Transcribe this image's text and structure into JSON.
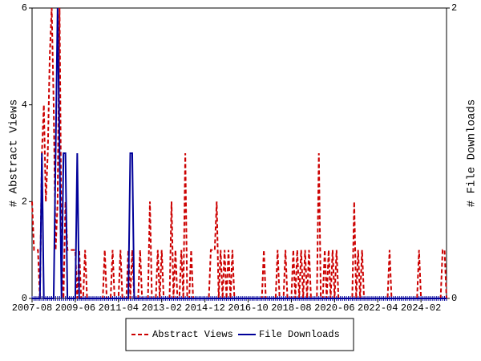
{
  "chart_data": {
    "type": "line",
    "x": [
      "2007-08",
      "2007-09",
      "2007-10",
      "2007-11",
      "2007-12",
      "2008-01",
      "2008-02",
      "2008-03",
      "2008-04",
      "2008-05",
      "2008-06",
      "2008-07",
      "2008-08",
      "2008-09",
      "2008-10",
      "2008-11",
      "2008-12",
      "2009-01",
      "2009-02",
      "2009-03",
      "2009-04",
      "2009-05",
      "2009-06",
      "2009-07",
      "2009-08",
      "2009-09",
      "2009-10",
      "2009-11",
      "2009-12",
      "2010-01",
      "2010-02",
      "2010-03",
      "2010-04",
      "2010-05",
      "2010-06",
      "2010-07",
      "2010-08",
      "2010-09",
      "2010-10",
      "2010-11",
      "2010-12",
      "2011-01",
      "2011-02",
      "2011-03",
      "2011-04",
      "2011-05",
      "2011-06",
      "2011-07",
      "2011-08",
      "2011-09",
      "2011-10",
      "2011-11",
      "2011-12",
      "2012-01",
      "2012-02",
      "2012-03",
      "2012-04",
      "2012-05",
      "2012-06",
      "2012-07",
      "2012-08",
      "2012-09",
      "2012-10",
      "2012-11",
      "2012-12",
      "2013-01",
      "2013-02",
      "2013-03",
      "2013-04",
      "2013-05",
      "2013-06",
      "2013-07",
      "2013-08",
      "2013-09",
      "2013-10",
      "2013-11",
      "2013-12",
      "2014-01",
      "2014-02",
      "2014-03",
      "2014-04",
      "2014-05",
      "2014-06",
      "2014-07",
      "2014-08",
      "2014-09",
      "2014-10",
      "2014-11",
      "2014-12",
      "2015-01",
      "2015-02",
      "2015-03",
      "2015-04",
      "2015-05",
      "2015-06",
      "2015-07",
      "2015-08",
      "2015-09",
      "2015-10",
      "2015-11",
      "2015-12",
      "2016-01",
      "2016-02",
      "2016-03",
      "2016-04",
      "2016-05",
      "2016-06",
      "2016-07",
      "2016-08",
      "2016-09",
      "2016-10",
      "2016-11",
      "2016-12",
      "2017-01",
      "2017-02",
      "2017-03",
      "2017-04",
      "2017-05",
      "2017-06",
      "2017-07",
      "2017-08",
      "2017-09",
      "2017-10",
      "2017-11",
      "2017-12",
      "2018-01",
      "2018-02",
      "2018-03",
      "2018-04",
      "2018-05",
      "2018-06",
      "2018-07",
      "2018-08",
      "2018-09",
      "2018-10",
      "2018-11",
      "2018-12",
      "2019-01",
      "2019-02",
      "2019-03",
      "2019-04",
      "2019-05",
      "2019-06",
      "2019-07",
      "2019-08",
      "2019-09",
      "2019-10",
      "2019-11",
      "2019-12",
      "2020-01",
      "2020-02",
      "2020-03",
      "2020-04",
      "2020-05",
      "2020-06",
      "2020-07",
      "2020-08",
      "2020-09",
      "2020-10",
      "2020-11",
      "2020-12",
      "2021-01",
      "2021-02",
      "2021-03",
      "2021-04",
      "2021-05",
      "2021-06",
      "2021-07",
      "2021-08",
      "2021-09",
      "2021-10",
      "2021-11",
      "2021-12",
      "2022-01",
      "2022-02",
      "2022-03",
      "2022-04",
      "2022-05",
      "2022-06",
      "2022-07",
      "2022-08",
      "2022-09",
      "2022-10",
      "2022-11",
      "2022-12",
      "2023-01",
      "2023-02",
      "2023-03",
      "2023-04",
      "2023-05",
      "2023-06",
      "2023-07",
      "2023-08",
      "2023-09",
      "2023-10",
      "2023-11",
      "2023-12",
      "2024-01",
      "2024-02",
      "2024-03",
      "2024-04",
      "2024-05",
      "2024-06",
      "2024-07",
      "2024-08",
      "2024-09",
      "2024-10",
      "2024-11",
      "2024-12",
      "2025-01",
      "2025-02",
      "2025-03"
    ],
    "series": [
      {
        "name": "Abstract Views",
        "color": "#cc0000",
        "dash": true,
        "axis": "y",
        "values": [
          2,
          1,
          1,
          1,
          0,
          3,
          4,
          2,
          3,
          5,
          6,
          4,
          1,
          2,
          6,
          1,
          0,
          2,
          1,
          1,
          1,
          1,
          1,
          0,
          1,
          0,
          0,
          1,
          0,
          0,
          0,
          0,
          0,
          0,
          0,
          0,
          0,
          1,
          0,
          0,
          0,
          1,
          0,
          0,
          0,
          1,
          0,
          0,
          0,
          1,
          0,
          1,
          0,
          0,
          0,
          1,
          0,
          0,
          0,
          0,
          2,
          0,
          0,
          0,
          1,
          0,
          1,
          0,
          0,
          0,
          0,
          2,
          0,
          1,
          0,
          0,
          1,
          0,
          3,
          0,
          0,
          1,
          0,
          0,
          0,
          0,
          0,
          0,
          0,
          0,
          0,
          1,
          1,
          1,
          2,
          0,
          1,
          0,
          1,
          0,
          1,
          0,
          1,
          0,
          0,
          0,
          0,
          0,
          0,
          0,
          0,
          0,
          0,
          0,
          0,
          0,
          0,
          0,
          1,
          0,
          0,
          0,
          0,
          0,
          0,
          1,
          0,
          0,
          0,
          1,
          0,
          0,
          0,
          1,
          0,
          1,
          0,
          1,
          0,
          1,
          0,
          1,
          0,
          0,
          0,
          0,
          3,
          0,
          0,
          1,
          0,
          1,
          0,
          1,
          0,
          1,
          0,
          0,
          0,
          0,
          0,
          0,
          0,
          0,
          2,
          0,
          1,
          0,
          1,
          0,
          0,
          0,
          0,
          0,
          0,
          0,
          0,
          0,
          0,
          0,
          0,
          0,
          1,
          0,
          0,
          0,
          0,
          0,
          0,
          0,
          0,
          0,
          0,
          0,
          0,
          0,
          0,
          1,
          0,
          0,
          0,
          0,
          0,
          0,
          0,
          0,
          0,
          0,
          0,
          1,
          1,
          0
        ]
      },
      {
        "name": "File Downloads",
        "color": "#000099",
        "dash": false,
        "axis": "y2",
        "values": [
          0,
          0,
          0,
          0,
          0,
          1,
          0,
          0,
          0,
          0,
          0,
          0,
          1,
          2,
          1,
          0,
          1,
          1,
          0,
          0,
          0,
          0,
          0,
          1,
          0,
          0,
          0,
          0,
          0,
          0,
          0,
          0,
          0,
          0,
          0,
          0,
          0,
          0,
          0,
          0,
          0,
          0,
          0,
          0,
          0,
          0,
          0,
          0,
          0,
          0,
          1,
          1,
          0,
          0,
          0,
          0,
          0,
          0,
          0,
          0,
          0,
          0,
          0,
          0,
          0,
          0,
          0,
          0,
          0,
          0,
          0,
          0,
          0,
          0,
          0,
          0,
          0,
          0,
          0,
          0,
          0,
          0,
          0,
          0,
          0,
          0,
          0,
          0,
          0,
          0,
          0,
          0,
          0,
          0,
          0,
          0,
          0,
          0,
          0,
          0,
          0,
          0,
          0,
          0,
          0,
          0,
          0,
          0,
          0,
          0,
          0,
          0,
          0,
          0,
          0,
          0,
          0,
          0,
          0,
          0,
          0,
          0,
          0,
          0,
          0,
          0,
          0,
          0,
          0,
          0,
          0,
          0,
          0,
          0,
          0,
          0,
          0,
          0,
          0,
          0,
          0,
          0,
          0,
          0,
          0,
          0,
          0,
          0,
          0,
          0,
          0,
          0,
          0,
          0,
          0,
          0,
          0,
          0,
          0,
          0,
          0,
          0,
          0,
          0,
          0,
          0,
          0,
          0,
          0,
          0,
          0,
          0,
          0,
          0,
          0,
          0,
          0,
          0,
          0,
          0,
          0,
          0,
          0,
          0,
          0,
          0,
          0,
          0,
          0,
          0,
          0,
          0,
          0,
          0,
          0,
          0,
          0,
          0,
          0,
          0,
          0,
          0,
          0,
          0,
          0,
          0,
          0,
          0,
          0,
          0,
          0,
          0
        ]
      }
    ],
    "xticks": [
      "2007-08",
      "2009-06",
      "2011-04",
      "2013-02",
      "2014-12",
      "2016-10",
      "2018-08",
      "2020-06",
      "2022-04",
      "2024-02"
    ],
    "ylabel": "# Abstract Views",
    "ylim": [
      0,
      6
    ],
    "yticks": [
      0,
      2,
      4,
      6
    ],
    "y2label": "# File Downloads",
    "y2lim": [
      0,
      2
    ],
    "y2ticks": [
      0,
      2
    ],
    "legend": "bottom"
  }
}
